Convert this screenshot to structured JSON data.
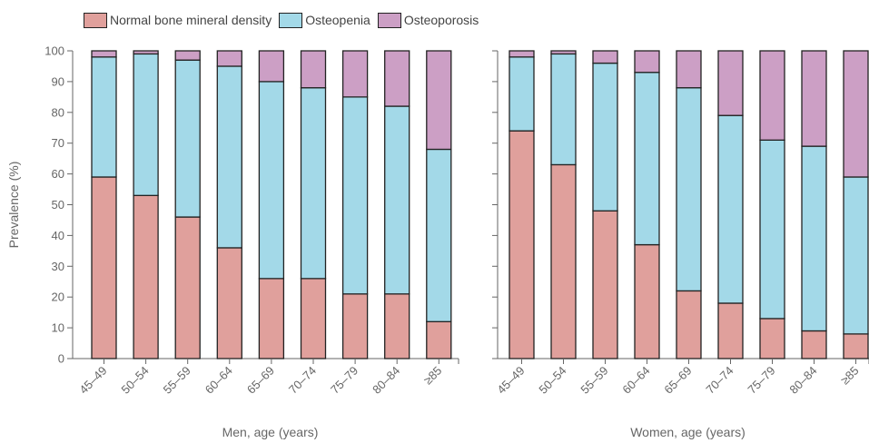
{
  "legend": [
    {
      "label": "Normal bone mineral density",
      "color": "#e0a09c"
    },
    {
      "label": "Osteopenia",
      "color": "#a3d9e8"
    },
    {
      "label": "Osteoporosis",
      "color": "#cc9fc5"
    }
  ],
  "colors": {
    "normal": "#e0a09c",
    "osteopenia": "#a3d9e8",
    "osteoporosis": "#cc9fc5",
    "outline": "#222222"
  },
  "chart_data": [
    {
      "type": "bar",
      "stacked": true,
      "xlabel": "Men, age (years)",
      "ylabel": "Prevalence (%)",
      "ylim": [
        0,
        100
      ],
      "yticks": [
        0,
        10,
        20,
        30,
        40,
        50,
        60,
        70,
        80,
        90,
        100
      ],
      "categories": [
        "45–49",
        "50–54",
        "55–59",
        "60–64",
        "65–69",
        "70–74",
        "75–79",
        "80–84",
        "≥85"
      ],
      "series": [
        {
          "name": "Normal bone mineral density",
          "values": [
            59,
            53,
            46,
            36,
            26,
            26,
            21,
            21,
            12
          ]
        },
        {
          "name": "Osteopenia",
          "values": [
            39,
            46,
            51,
            59,
            64,
            62,
            64,
            61,
            56
          ]
        },
        {
          "name": "Osteoporosis",
          "values": [
            2,
            1,
            3,
            5,
            10,
            12,
            15,
            18,
            32
          ]
        }
      ]
    },
    {
      "type": "bar",
      "stacked": true,
      "xlabel": "Women, age (years)",
      "ylabel": "",
      "ylim": [
        0,
        100
      ],
      "yticks": [
        0,
        10,
        20,
        30,
        40,
        50,
        60,
        70,
        80,
        90,
        100
      ],
      "categories": [
        "45–49",
        "50–54",
        "55–59",
        "60–64",
        "65–69",
        "70–74",
        "75–79",
        "80–84",
        "≥85"
      ],
      "series": [
        {
          "name": "Normal bone mineral density",
          "values": [
            74,
            63,
            48,
            37,
            22,
            18,
            13,
            9,
            8
          ]
        },
        {
          "name": "Osteopenia",
          "values": [
            24,
            36,
            48,
            56,
            66,
            61,
            58,
            60,
            51
          ]
        },
        {
          "name": "Osteoporosis",
          "values": [
            2,
            1,
            4,
            7,
            12,
            21,
            29,
            31,
            41
          ]
        }
      ]
    }
  ]
}
